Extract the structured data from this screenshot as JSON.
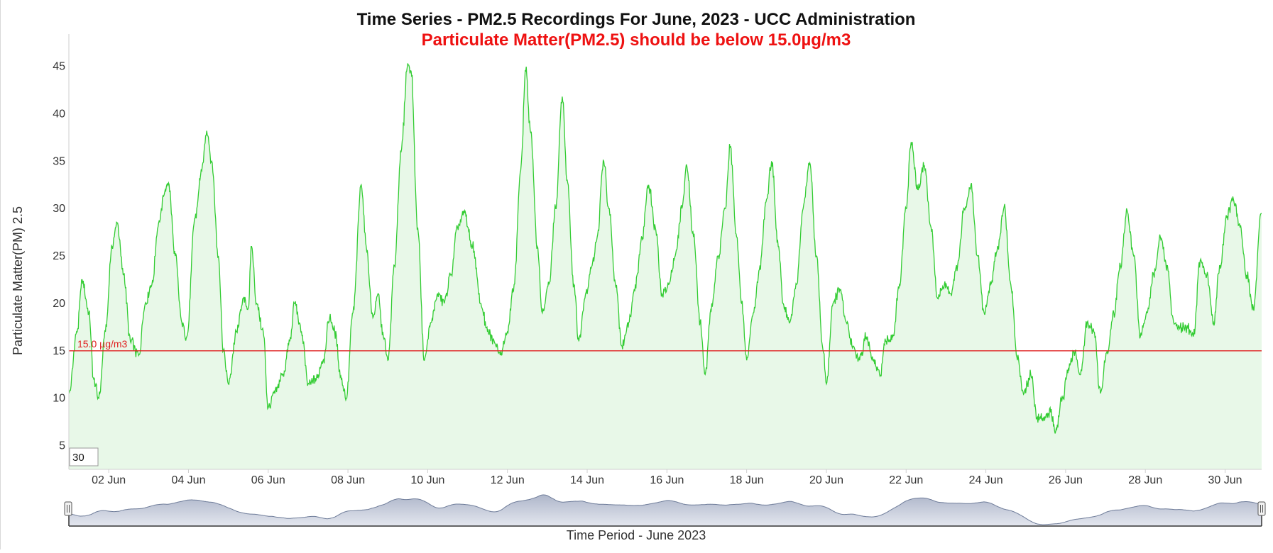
{
  "chart_data": {
    "type": "area",
    "title": "Time Series - PM2.5 Recordings For June, 2023 - UCC Administration",
    "subtitle": "Particulate Matter(PM2.5) should be below 15.0µg/m3",
    "xlabel": "Time Period - June 2023",
    "ylabel": "Particulate Matter(PM) 2.5",
    "ylim": [
      2.5,
      49
    ],
    "yticks": [
      5,
      10,
      15,
      20,
      25,
      30,
      35,
      40,
      45
    ],
    "xlim": [
      "2023-06-01",
      "2023-06-30T22:00"
    ],
    "xticks": [
      "02 Jun",
      "04 Jun",
      "06 Jun",
      "08 Jun",
      "10 Jun",
      "12 Jun",
      "14 Jun",
      "16 Jun",
      "18 Jun",
      "20 Jun",
      "22 Jun",
      "24 Jun",
      "26 Jun",
      "28 Jun",
      "30 Jun"
    ],
    "grid": false,
    "threshold": {
      "value": 15.0,
      "label": "15.0 µg/m3"
    },
    "rolling_period": "30",
    "series": [
      {
        "points": [
          [
            "2023-06-01T00:00",
            10.5
          ],
          [
            "2023-06-01T05:00",
            17
          ],
          [
            "2023-06-01T08:00",
            22.5
          ],
          [
            "2023-06-01T12:00",
            19
          ],
          [
            "2023-06-01T15:00",
            12
          ],
          [
            "2023-06-01T18:00",
            10
          ],
          [
            "2023-06-01T22:00",
            17
          ],
          [
            "2023-06-02T02:00",
            26
          ],
          [
            "2023-06-02T05:00",
            28.5
          ],
          [
            "2023-06-02T09:00",
            23
          ],
          [
            "2023-06-02T13:00",
            16
          ],
          [
            "2023-06-02T18:00",
            14.5
          ],
          [
            "2023-06-02T22:00",
            20
          ],
          [
            "2023-06-03T02:00",
            22
          ],
          [
            "2023-06-03T06:00",
            28.5
          ],
          [
            "2023-06-03T10:00",
            32
          ],
          [
            "2023-06-03T12:00",
            32.7
          ],
          [
            "2023-06-03T16:00",
            25
          ],
          [
            "2023-06-03T20:00",
            18
          ],
          [
            "2023-06-03T23:00",
            16.5
          ],
          [
            "2023-06-04T04:00",
            29
          ],
          [
            "2023-06-04T08:00",
            34
          ],
          [
            "2023-06-04T11:00",
            38.2
          ],
          [
            "2023-06-04T14:00",
            35
          ],
          [
            "2023-06-04T18:00",
            25
          ],
          [
            "2023-06-04T21:00",
            15
          ],
          [
            "2023-06-05T00:00",
            11.5
          ],
          [
            "2023-06-05T05:00",
            17
          ],
          [
            "2023-06-05T09:00",
            20.5
          ],
          [
            "2023-06-05T12:00",
            19.5
          ],
          [
            "2023-06-05T14:00",
            26
          ],
          [
            "2023-06-05T17:00",
            20
          ],
          [
            "2023-06-05T21:00",
            17
          ],
          [
            "2023-06-06T00:00",
            9
          ],
          [
            "2023-06-06T04:00",
            10.5
          ],
          [
            "2023-06-06T09:00",
            12.5
          ],
          [
            "2023-06-06T13:00",
            16
          ],
          [
            "2023-06-06T16:00",
            20
          ],
          [
            "2023-06-06T20:00",
            17
          ],
          [
            "2023-06-07T00:00",
            11.5
          ],
          [
            "2023-06-07T05:00",
            12
          ],
          [
            "2023-06-07T09:00",
            14
          ],
          [
            "2023-06-07T13:00",
            18.5
          ],
          [
            "2023-06-07T16:00",
            17
          ],
          [
            "2023-06-07T20:00",
            12
          ],
          [
            "2023-06-07T23:00",
            10
          ],
          [
            "2023-06-08T03:00",
            19
          ],
          [
            "2023-06-08T08:00",
            32.5
          ],
          [
            "2023-06-08T11:00",
            26
          ],
          [
            "2023-06-08T15:00",
            18.5
          ],
          [
            "2023-06-08T18:00",
            21
          ],
          [
            "2023-06-08T21:00",
            17
          ],
          [
            "2023-06-09T00:00",
            14
          ],
          [
            "2023-06-09T04:00",
            24
          ],
          [
            "2023-06-09T08:00",
            36
          ],
          [
            "2023-06-09T12:00",
            45.3
          ],
          [
            "2023-06-09T14:00",
            44.5
          ],
          [
            "2023-06-09T18:00",
            28
          ],
          [
            "2023-06-09T22:00",
            14
          ],
          [
            "2023-06-10T02:00",
            18
          ],
          [
            "2023-06-10T06:00",
            21
          ],
          [
            "2023-06-10T10:00",
            20
          ],
          [
            "2023-06-10T14:00",
            23
          ],
          [
            "2023-06-10T18:00",
            28
          ],
          [
            "2023-06-10T22:00",
            29.5
          ],
          [
            "2023-06-11T03:00",
            26
          ],
          [
            "2023-06-11T08:00",
            20
          ],
          [
            "2023-06-11T12:00",
            17
          ],
          [
            "2023-06-11T16:00",
            16
          ],
          [
            "2023-06-11T20:00",
            15
          ],
          [
            "2023-06-12T00:00",
            17
          ],
          [
            "2023-06-12T04:00",
            22
          ],
          [
            "2023-06-12T08:00",
            34
          ],
          [
            "2023-06-12T11:00",
            44.5
          ],
          [
            "2023-06-12T14:00",
            38
          ],
          [
            "2023-06-12T18:00",
            26
          ],
          [
            "2023-06-12T21:00",
            19
          ],
          [
            "2023-06-13T01:00",
            22
          ],
          [
            "2023-06-13T05:00",
            30
          ],
          [
            "2023-06-13T09:00",
            41.8
          ],
          [
            "2023-06-13T12:00",
            33
          ],
          [
            "2023-06-13T16:00",
            22
          ],
          [
            "2023-06-13T19:00",
            16
          ],
          [
            "2023-06-13T23:00",
            21
          ],
          [
            "2023-06-14T03:00",
            24
          ],
          [
            "2023-06-14T06:00",
            27
          ],
          [
            "2023-06-14T10:00",
            35
          ],
          [
            "2023-06-14T13:00",
            30
          ],
          [
            "2023-06-14T17:00",
            22
          ],
          [
            "2023-06-14T21:00",
            15.5
          ],
          [
            "2023-06-15T01:00",
            18
          ],
          [
            "2023-06-15T05:00",
            22
          ],
          [
            "2023-06-15T09:00",
            27
          ],
          [
            "2023-06-15T13:00",
            32.5
          ],
          [
            "2023-06-15T17:00",
            28
          ],
          [
            "2023-06-15T21:00",
            21
          ],
          [
            "2023-06-16T01:00",
            22
          ],
          [
            "2023-06-16T05:00",
            25
          ],
          [
            "2023-06-16T09:00",
            30
          ],
          [
            "2023-06-16T12:00",
            34.5
          ],
          [
            "2023-06-16T16:00",
            27
          ],
          [
            "2023-06-16T20:00",
            18
          ],
          [
            "2023-06-16T23:00",
            12.5
          ],
          [
            "2023-06-17T03:00",
            20
          ],
          [
            "2023-06-17T07:00",
            25
          ],
          [
            "2023-06-17T11:00",
            30
          ],
          [
            "2023-06-17T14:00",
            36.4
          ],
          [
            "2023-06-17T18:00",
            27
          ],
          [
            "2023-06-17T21:00",
            20
          ],
          [
            "2023-06-18T00:00",
            14
          ],
          [
            "2023-06-18T04:00",
            19
          ],
          [
            "2023-06-18T08:00",
            24
          ],
          [
            "2023-06-18T12:00",
            31
          ],
          [
            "2023-06-18T15:00",
            35
          ],
          [
            "2023-06-18T19:00",
            26
          ],
          [
            "2023-06-18T22:00",
            20
          ],
          [
            "2023-06-19T02:00",
            18
          ],
          [
            "2023-06-19T06:00",
            22
          ],
          [
            "2023-06-19T10:00",
            30
          ],
          [
            "2023-06-19T14:00",
            34.8
          ],
          [
            "2023-06-19T18:00",
            25
          ],
          [
            "2023-06-19T22:00",
            15
          ],
          [
            "2023-06-20T00:00",
            11.5
          ],
          [
            "2023-06-20T04:00",
            20
          ],
          [
            "2023-06-20T08:00",
            21.5
          ],
          [
            "2023-06-20T12:00",
            18
          ],
          [
            "2023-06-20T16:00",
            15.5
          ],
          [
            "2023-06-20T20:00",
            14
          ],
          [
            "2023-06-21T00:00",
            16.5
          ],
          [
            "2023-06-21T04:00",
            14
          ],
          [
            "2023-06-21T08:00",
            12.5
          ],
          [
            "2023-06-21T12:00",
            16
          ],
          [
            "2023-06-21T16:00",
            16.5
          ],
          [
            "2023-06-21T20:00",
            22
          ],
          [
            "2023-06-22T00:00",
            30
          ],
          [
            "2023-06-22T03:00",
            37
          ],
          [
            "2023-06-22T07:00",
            32
          ],
          [
            "2023-06-22T11:00",
            34.5
          ],
          [
            "2023-06-22T15:00",
            28
          ],
          [
            "2023-06-22T19:00",
            20.5
          ],
          [
            "2023-06-22T23:00",
            22
          ],
          [
            "2023-06-23T03:00",
            21
          ],
          [
            "2023-06-23T07:00",
            24
          ],
          [
            "2023-06-23T11:00",
            30
          ],
          [
            "2023-06-23T15:00",
            32.5
          ],
          [
            "2023-06-23T19:00",
            25
          ],
          [
            "2023-06-23T23:00",
            19
          ],
          [
            "2023-06-24T03:00",
            22
          ],
          [
            "2023-06-24T07:00",
            26
          ],
          [
            "2023-06-24T11:00",
            30.2
          ],
          [
            "2023-06-24T15:00",
            22
          ],
          [
            "2023-06-24T19:00",
            14
          ],
          [
            "2023-06-24T23:00",
            10.5
          ],
          [
            "2023-06-25T03:00",
            12.5
          ],
          [
            "2023-06-25T07:00",
            8
          ],
          [
            "2023-06-25T11:00",
            8
          ],
          [
            "2023-06-25T15:00",
            8.5
          ],
          [
            "2023-06-25T18:00",
            6.5
          ],
          [
            "2023-06-25T22:00",
            10
          ],
          [
            "2023-06-26T02:00",
            13
          ],
          [
            "2023-06-26T05:00",
            14.8
          ],
          [
            "2023-06-26T09:00",
            12.5
          ],
          [
            "2023-06-26T13:00",
            18
          ],
          [
            "2023-06-26T17:00",
            17
          ],
          [
            "2023-06-26T21:00",
            10.5
          ],
          [
            "2023-06-27T01:00",
            15
          ],
          [
            "2023-06-27T05:00",
            19
          ],
          [
            "2023-06-27T09:00",
            24
          ],
          [
            "2023-06-27T13:00",
            29.8
          ],
          [
            "2023-06-27T17:00",
            25
          ],
          [
            "2023-06-27T21:00",
            16.5
          ],
          [
            "2023-06-28T01:00",
            19
          ],
          [
            "2023-06-28T05:00",
            23
          ],
          [
            "2023-06-28T09:00",
            27
          ],
          [
            "2023-06-28T13:00",
            24
          ],
          [
            "2023-06-28T17:00",
            18
          ],
          [
            "2023-06-28T21:00",
            17.5
          ],
          [
            "2023-06-29T01:00",
            17.5
          ],
          [
            "2023-06-29T05:00",
            16.5
          ],
          [
            "2023-06-29T09:00",
            24.5
          ],
          [
            "2023-06-29T13:00",
            23
          ],
          [
            "2023-06-29T17:00",
            18
          ],
          [
            "2023-06-29T21:00",
            24
          ],
          [
            "2023-06-30T01:00",
            29
          ],
          [
            "2023-06-30T05:00",
            31
          ],
          [
            "2023-06-30T09:00",
            28
          ],
          [
            "2023-06-30T13:00",
            23
          ],
          [
            "2023-06-30T17:00",
            19.5
          ],
          [
            "2023-06-30T22:00",
            29.5
          ]
        ]
      }
    ]
  },
  "colors": {
    "line": "#33cc33",
    "area": "#e8f8e8",
    "threshold": "#e02020",
    "subtitle": "#ee1111",
    "navigator_fill": "#c5cbda",
    "navigator_line": "#6e7c99"
  },
  "icons": {
    "navigator_left_handle": "grip-handle",
    "navigator_right_handle": "grip-handle"
  }
}
